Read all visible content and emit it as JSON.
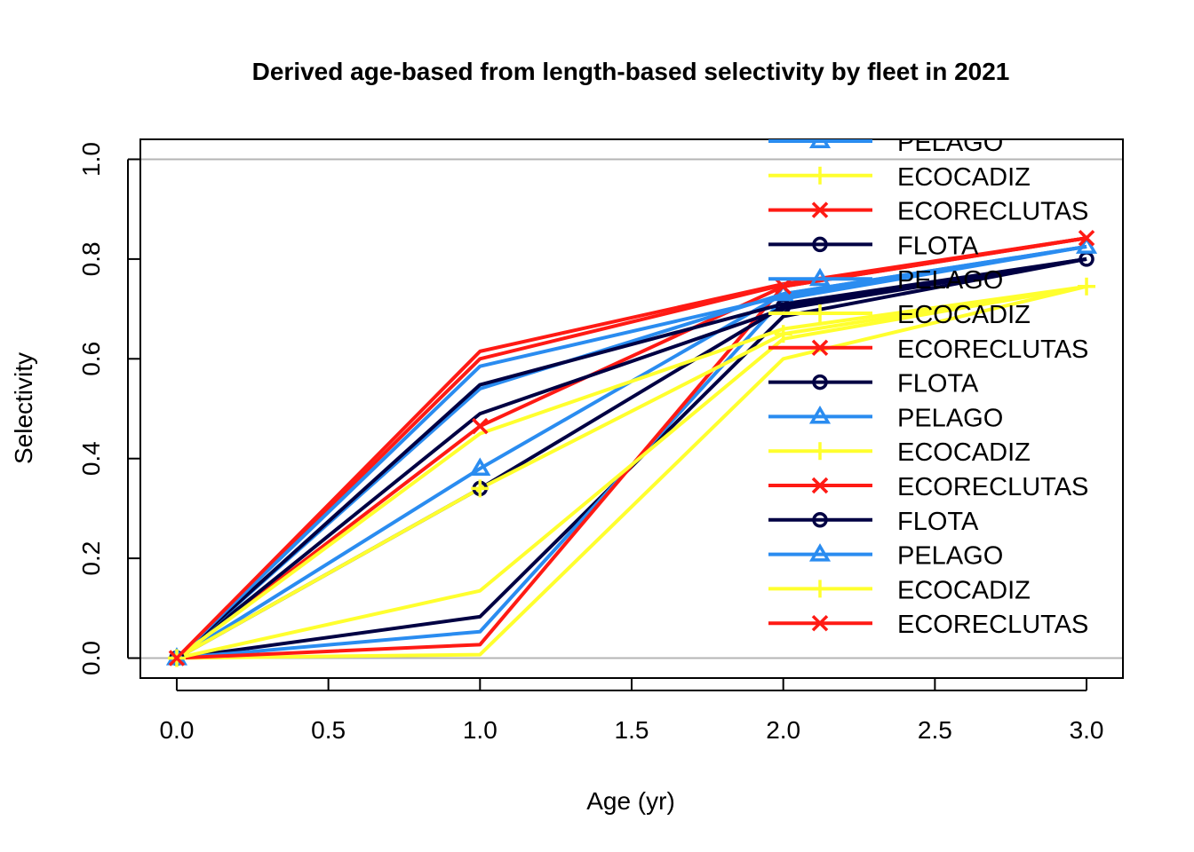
{
  "chart_data": {
    "type": "line",
    "title": "Derived age-based from length-based selectivity by fleet in 2021",
    "xlabel": "Age (yr)",
    "ylabel": "Selectivity",
    "xlim": [
      -0.12,
      3.12
    ],
    "ylim": [
      -0.04,
      1.04
    ],
    "x_ticks": [
      "0.0",
      "0.5",
      "1.0",
      "1.5",
      "2.0",
      "2.5",
      "3.0"
    ],
    "y_ticks": [
      "0.0",
      "0.2",
      "0.4",
      "0.6",
      "0.8",
      "1.0"
    ],
    "reference_lines_y": [
      0,
      1
    ],
    "colors": {
      "FLOTA": "#000043",
      "PELAGO": "#2a8cf0",
      "ECOCADIZ": "#ffff2e",
      "ECORECLUTAS": "#ff1a14",
      "reference": "#b4b4b4"
    },
    "x": [
      0,
      1,
      2,
      3
    ],
    "series": [
      {
        "name": "FLOTA",
        "values": [
          0,
          0.083,
          0.685,
          0.8
        ]
      },
      {
        "name": "PELAGO",
        "values": [
          0,
          0.053,
          0.72,
          0.825
        ]
      },
      {
        "name": "ECOCADIZ",
        "values": [
          0,
          0.007,
          0.6,
          0.745
        ]
      },
      {
        "name": "ECORECLUTAS",
        "values": [
          0,
          0.027,
          0.745,
          0.842
        ]
      },
      {
        "name": "FLOTA",
        "values": [
          0,
          0.34,
          0.705,
          0.8
        ]
      },
      {
        "name": "PELAGO",
        "values": [
          0,
          0.38,
          0.73,
          0.825
        ]
      },
      {
        "name": "ECOCADIZ",
        "values": [
          0,
          0.34,
          0.65,
          0.745
        ]
      },
      {
        "name": "ECORECLUTAS",
        "values": [
          0,
          0.465,
          0.745,
          0.842
        ]
      },
      {
        "name": "FLOTA",
        "values": [
          0,
          0.49,
          0.7,
          0.8
        ]
      },
      {
        "name": "PELAGO",
        "values": [
          0,
          0.54,
          0.73,
          0.825
        ]
      },
      {
        "name": "ECOCADIZ",
        "values": [
          0,
          0.135,
          0.64,
          0.745
        ]
      },
      {
        "name": "ECORECLUTAS",
        "values": [
          0,
          0.6,
          0.748,
          0.842
        ]
      },
      {
        "name": "FLOTA",
        "values": [
          0,
          0.548,
          0.71,
          0.8
        ]
      },
      {
        "name": "PELAGO",
        "values": [
          0,
          0.585,
          0.725,
          0.825
        ]
      },
      {
        "name": "ECOCADIZ",
        "values": [
          0,
          0.45,
          0.66,
          0.745
        ]
      },
      {
        "name": "ECORECLUTAS",
        "values": [
          0,
          0.615,
          0.75,
          0.842
        ]
      }
    ],
    "marker_series": [
      {
        "name": "FLOTA",
        "marker": "circle"
      },
      {
        "name": "PELAGO",
        "marker": "triangle"
      },
      {
        "name": "ECOCADIZ",
        "marker": "plus"
      },
      {
        "name": "ECORECLUTAS",
        "marker": "cross"
      }
    ],
    "legend": {
      "placement": "top-right",
      "entries": [
        {
          "label": "PELAGO",
          "marker": "triangle"
        },
        {
          "label": "ECOCADIZ",
          "marker": "plus"
        },
        {
          "label": "ECORECLUTAS",
          "marker": "cross"
        },
        {
          "label": "FLOTA",
          "marker": "circle"
        },
        {
          "label": "PELAGO",
          "marker": "triangle"
        },
        {
          "label": "ECOCADIZ",
          "marker": "plus"
        },
        {
          "label": "ECORECLUTAS",
          "marker": "cross"
        },
        {
          "label": "FLOTA",
          "marker": "circle"
        },
        {
          "label": "PELAGO",
          "marker": "triangle"
        },
        {
          "label": "ECOCADIZ",
          "marker": "plus"
        },
        {
          "label": "ECORECLUTAS",
          "marker": "cross"
        },
        {
          "label": "FLOTA",
          "marker": "circle"
        },
        {
          "label": "PELAGO",
          "marker": "triangle"
        },
        {
          "label": "ECOCADIZ",
          "marker": "plus"
        },
        {
          "label": "ECORECLUTAS",
          "marker": "cross"
        }
      ]
    }
  }
}
